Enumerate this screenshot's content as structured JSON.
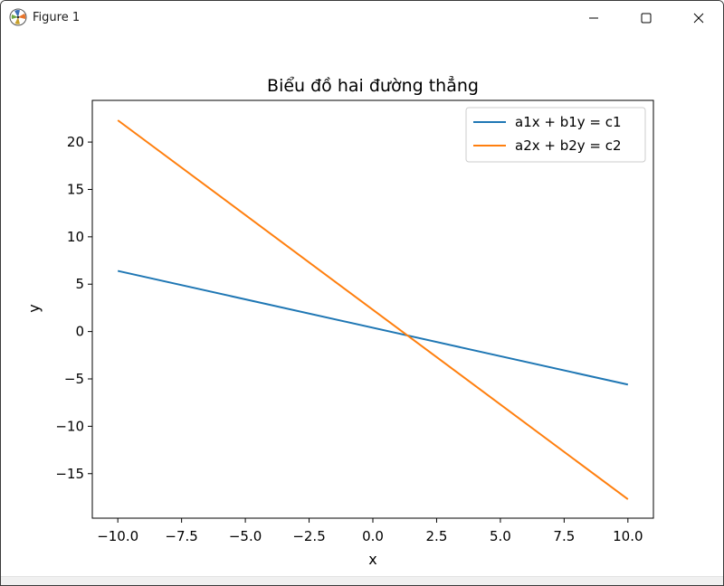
{
  "window": {
    "title": "Figure 1",
    "icon": "matplotlib-icon",
    "controls": [
      "minimize-icon",
      "maximize-icon",
      "close-icon"
    ]
  },
  "chart_data": {
    "type": "line",
    "title": "Biểu đồ hai đường thẳng",
    "xlabel": "x",
    "ylabel": "y",
    "xlim": [
      -11.0,
      11.0
    ],
    "ylim": [
      -19.7,
      24.4
    ],
    "xticks": [
      -10.0,
      -7.5,
      -5.0,
      -2.5,
      0.0,
      2.5,
      5.0,
      7.5,
      10.0
    ],
    "xtick_labels": [
      "−10.0",
      "−7.5",
      "−5.0",
      "−2.5",
      "0.0",
      "2.5",
      "5.0",
      "7.5",
      "10.0"
    ],
    "yticks": [
      20,
      15,
      10,
      5,
      0,
      -5,
      -10,
      -15
    ],
    "ytick_labels": [
      "20",
      "15",
      "10",
      "5",
      "0",
      "−5",
      "−10",
      "−15"
    ],
    "grid": false,
    "legend_position": "top-right",
    "series": [
      {
        "name": "a1x + b1y = c1",
        "color": "#1f77b4",
        "x": [
          -10,
          10
        ],
        "y": [
          6.4,
          -5.6
        ]
      },
      {
        "name": "a2x + b2y = c2",
        "color": "#ff7f0e",
        "x": [
          -10,
          10
        ],
        "y": [
          22.3,
          -17.7
        ]
      }
    ]
  }
}
